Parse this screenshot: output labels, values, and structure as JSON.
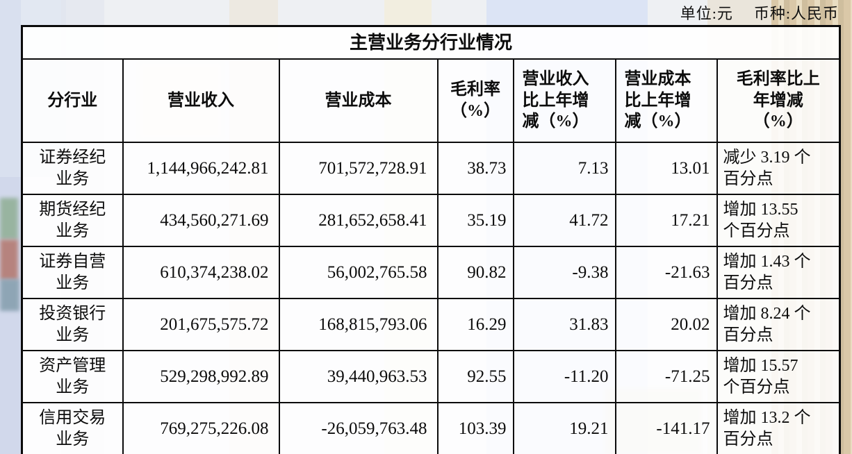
{
  "page": {
    "unit_label": "单位:元",
    "currency_label": "币种:人民币"
  },
  "table": {
    "title": "主营业务分行业情况",
    "columns": [
      "分行业",
      "营业收入",
      "营业成本",
      "毛利率\n（%）",
      "营业收入\n比上年增\n减（%）",
      "营业成本\n比上年增\n减（%）",
      "毛利率比上\n年增减\n（%）"
    ],
    "rows": [
      {
        "industry": "证券经纪\n业务",
        "revenue": "1,144,966,242.81",
        "cost": "701,572,728.91",
        "gross_margin": "38.73",
        "revenue_yoy": "7.13",
        "cost_yoy": "13.01",
        "margin_yoy": "减少 3.19 个\n百分点"
      },
      {
        "industry": "期货经纪\n业务",
        "revenue": "434,560,271.69",
        "cost": "281,652,658.41",
        "gross_margin": "35.19",
        "revenue_yoy": "41.72",
        "cost_yoy": "17.21",
        "margin_yoy": "增加 13.55\n个百分点"
      },
      {
        "industry": "证券自营\n业务",
        "revenue": "610,374,238.02",
        "cost": "56,002,765.58",
        "gross_margin": "90.82",
        "revenue_yoy": "-9.38",
        "cost_yoy": "-21.63",
        "margin_yoy": "增加 1.43 个\n百分点"
      },
      {
        "industry": "投资银行\n业务",
        "revenue": "201,675,575.72",
        "cost": "168,815,793.06",
        "gross_margin": "16.29",
        "revenue_yoy": "31.83",
        "cost_yoy": "20.02",
        "margin_yoy": "增加 8.24 个\n百分点"
      },
      {
        "industry": "资产管理\n业务",
        "revenue": "529,298,992.89",
        "cost": "39,440,963.53",
        "gross_margin": "92.55",
        "revenue_yoy": "-11.20",
        "cost_yoy": "-71.25",
        "margin_yoy": "增加 15.57\n个百分点"
      },
      {
        "industry": "信用交易\n业务",
        "revenue": "769,275,226.08",
        "cost": "-26,059,763.48",
        "gross_margin": "103.39",
        "revenue_yoy": "19.21",
        "cost_yoy": "-141.17",
        "margin_yoy": "增加 13.2 个\n百分点"
      }
    ]
  },
  "colors": {
    "border": "#0b0b0b",
    "background_blue_band": "#d8e2f4",
    "background_tan_band": "#d9c6a4"
  }
}
